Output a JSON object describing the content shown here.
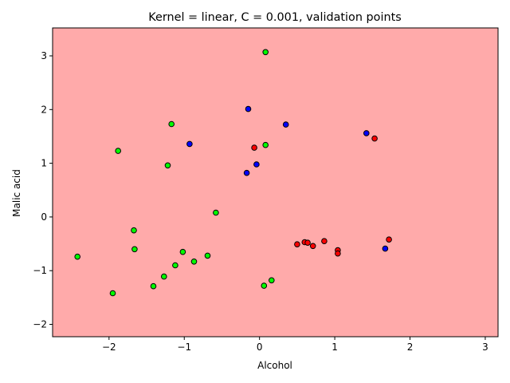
{
  "chart_data": {
    "type": "scatter",
    "title": "Kernel = linear, C = 0.001, validation points",
    "xlabel": "Alcohol",
    "ylabel": "Malic acid",
    "xlim": [
      -2.75,
      3.17
    ],
    "ylim": [
      -2.23,
      3.52
    ],
    "xticks": [
      -2,
      -1,
      0,
      1,
      2,
      3
    ],
    "yticks": [
      -2,
      -1,
      0,
      1,
      2,
      3
    ],
    "xtick_labels": [
      "−2",
      "−1",
      "0",
      "1",
      "2",
      "3"
    ],
    "ytick_labels": [
      "−2",
      "−1",
      "0",
      "1",
      "2",
      "3"
    ],
    "background_region_color": "#ffaaaa",
    "grid": false,
    "series": [
      {
        "color": "#00ff00",
        "points": [
          [
            -2.42,
            -0.74
          ],
          [
            -1.95,
            -1.42
          ],
          [
            -1.88,
            1.23
          ],
          [
            -1.67,
            -0.25
          ],
          [
            -1.66,
            -0.6
          ],
          [
            -1.41,
            -1.29
          ],
          [
            -1.27,
            -1.11
          ],
          [
            -1.22,
            0.96
          ],
          [
            -1.17,
            1.73
          ],
          [
            -1.12,
            -0.9
          ],
          [
            -1.02,
            -0.65
          ],
          [
            -0.87,
            -0.83
          ],
          [
            -0.69,
            -0.72
          ],
          [
            -0.58,
            0.08
          ],
          [
            0.06,
            -1.28
          ],
          [
            0.08,
            1.34
          ],
          [
            0.08,
            3.07
          ],
          [
            0.16,
            -1.18
          ]
        ]
      },
      {
        "color": "#ff0000",
        "points": [
          [
            -0.07,
            1.29
          ],
          [
            0.5,
            -0.51
          ],
          [
            0.6,
            -0.47
          ],
          [
            0.64,
            -0.48
          ],
          [
            0.71,
            -0.54
          ],
          [
            0.86,
            -0.45
          ],
          [
            1.04,
            -0.62
          ],
          [
            1.04,
            -0.68
          ],
          [
            1.53,
            1.46
          ],
          [
            1.72,
            -0.42
          ]
        ]
      },
      {
        "color": "#0000ff",
        "points": [
          [
            -0.93,
            1.36
          ],
          [
            -0.15,
            2.01
          ],
          [
            -0.17,
            0.82
          ],
          [
            -0.04,
            0.98
          ],
          [
            0.35,
            1.72
          ],
          [
            1.42,
            1.56
          ],
          [
            1.67,
            -0.59
          ]
        ]
      }
    ]
  }
}
